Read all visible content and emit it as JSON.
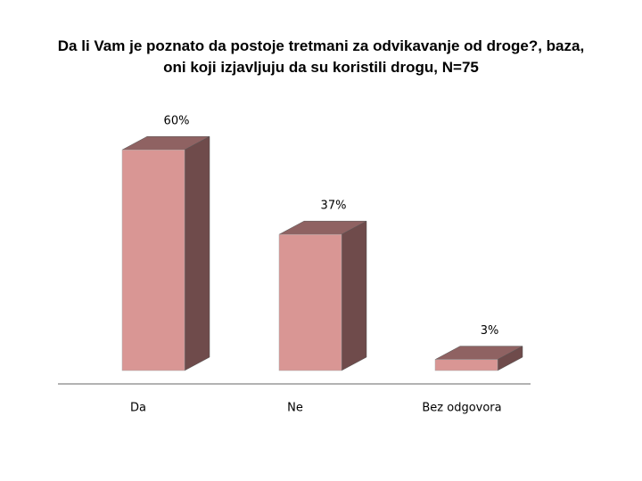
{
  "chart_data": {
    "type": "bar",
    "title": "Da li Vam je poznato da postoje tretmani za odvikavanje od droge?, baza, oni koji izjavljuju da su koristili drogu, N=75",
    "categories": [
      "Da",
      "Ne",
      "Bez odgovora"
    ],
    "values": [
      60,
      37,
      3
    ],
    "value_labels": [
      "60%",
      "37%",
      "3%"
    ],
    "color": "#d99694"
  }
}
